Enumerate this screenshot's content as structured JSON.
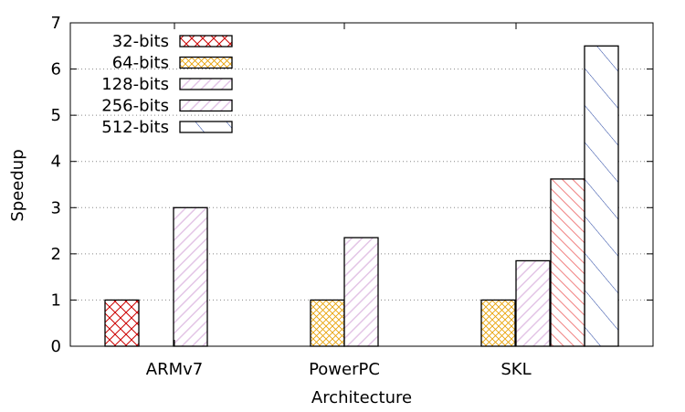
{
  "chart_data": {
    "type": "bar",
    "xlabel": "Architecture",
    "ylabel": "Speedup",
    "ylim": [
      0,
      7
    ],
    "yticks": [
      "0",
      "1",
      "2",
      "3",
      "4",
      "5",
      "6",
      "7"
    ],
    "grid": "horizontal-dotted",
    "legend_position": "top-left",
    "categories": [
      "ARMv7",
      "PowerPC",
      "SKL"
    ],
    "series": [
      {
        "name": "32-bits",
        "color": "#cc0000",
        "pattern": "crosshatch",
        "values": [
          1.0,
          null,
          null
        ]
      },
      {
        "name": "64-bits",
        "color": "#e8a000",
        "pattern": "fine-crosshatch",
        "values": [
          null,
          1.0,
          1.0
        ]
      },
      {
        "name": "128-bits",
        "color": "#000000",
        "pattern": "diagonal",
        "values": [
          null,
          null,
          1.85
        ]
      },
      {
        "name": "256-bits",
        "color": "#e3c5e6",
        "pattern": "diagonal",
        "values": [
          3.0,
          2.35,
          null
        ]
      },
      {
        "name": "512-bits",
        "color": "#2040a0",
        "pattern": "diagonal-wide",
        "values": [
          null,
          null,
          6.5
        ]
      }
    ],
    "extra_bars": [
      {
        "category": "SKL",
        "after_series": "128-bits",
        "color": "#f08080",
        "pattern": "diagonal-back",
        "value": 3.62
      }
    ]
  }
}
